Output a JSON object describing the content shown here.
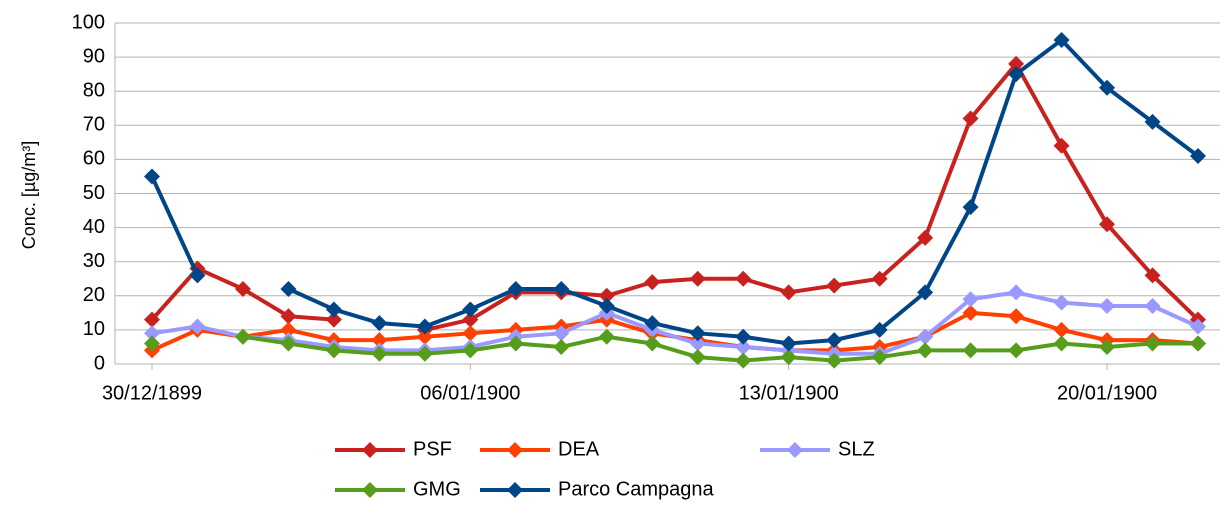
{
  "chart_data": {
    "type": "line",
    "y_label": "Conc. [µg/m³]",
    "x": [
      "30/12/1899",
      "31/12/1899",
      "01/01/1900",
      "02/01/1900",
      "03/01/1900",
      "04/01/1900",
      "05/01/1900",
      "06/01/1900",
      "07/01/1900",
      "08/01/1900",
      "09/01/1900",
      "10/01/1900",
      "11/01/1900",
      "12/01/1900",
      "13/01/1900",
      "14/01/1900",
      "15/01/1900",
      "16/01/1900",
      "17/01/1900",
      "18/01/1900",
      "19/01/1900",
      "20/01/1900",
      "21/01/1900",
      "22/01/1900"
    ],
    "xticks": [
      "30/12/1899",
      "06/01/1900",
      "13/01/1900",
      "20/01/1900"
    ],
    "ylim": [
      0,
      100
    ],
    "yticks": [
      0,
      10,
      20,
      30,
      40,
      50,
      60,
      70,
      80,
      90,
      100
    ],
    "grid": true,
    "legend": "bottom",
    "series": [
      {
        "name": "PSF",
        "color": "#c9211e",
        "values": [
          13,
          28,
          22,
          14,
          13,
          null,
          10,
          13,
          21,
          21,
          20,
          24,
          25,
          25,
          21,
          23,
          25,
          37,
          72,
          88,
          64,
          41,
          26,
          13
        ]
      },
      {
        "name": "DEA",
        "color": "#ff4000",
        "values": [
          4,
          10,
          8,
          10,
          7,
          7,
          8,
          9,
          10,
          11,
          13,
          9,
          7,
          5,
          4,
          4,
          5,
          8,
          15,
          14,
          10,
          7,
          7,
          6
        ]
      },
      {
        "name": "SLZ",
        "color": "#9999ff",
        "values": [
          9,
          11,
          8,
          7,
          5,
          4,
          4,
          5,
          8,
          9,
          15,
          10,
          6,
          5,
          4,
          3,
          3,
          8,
          19,
          21,
          18,
          17,
          17,
          11
        ]
      },
      {
        "name": "GMG",
        "color": "#579d1c",
        "values": [
          6,
          null,
          8,
          6,
          4,
          3,
          3,
          4,
          6,
          5,
          8,
          6,
          2,
          1,
          2,
          1,
          2,
          4,
          4,
          4,
          6,
          5,
          6,
          6
        ]
      },
      {
        "name": "Parco Campagna",
        "color": "#004586",
        "values": [
          55,
          26,
          null,
          22,
          16,
          12,
          11,
          16,
          22,
          22,
          17,
          12,
          9,
          8,
          6,
          7,
          10,
          21,
          46,
          85,
          95,
          81,
          71,
          61
        ]
      }
    ]
  }
}
